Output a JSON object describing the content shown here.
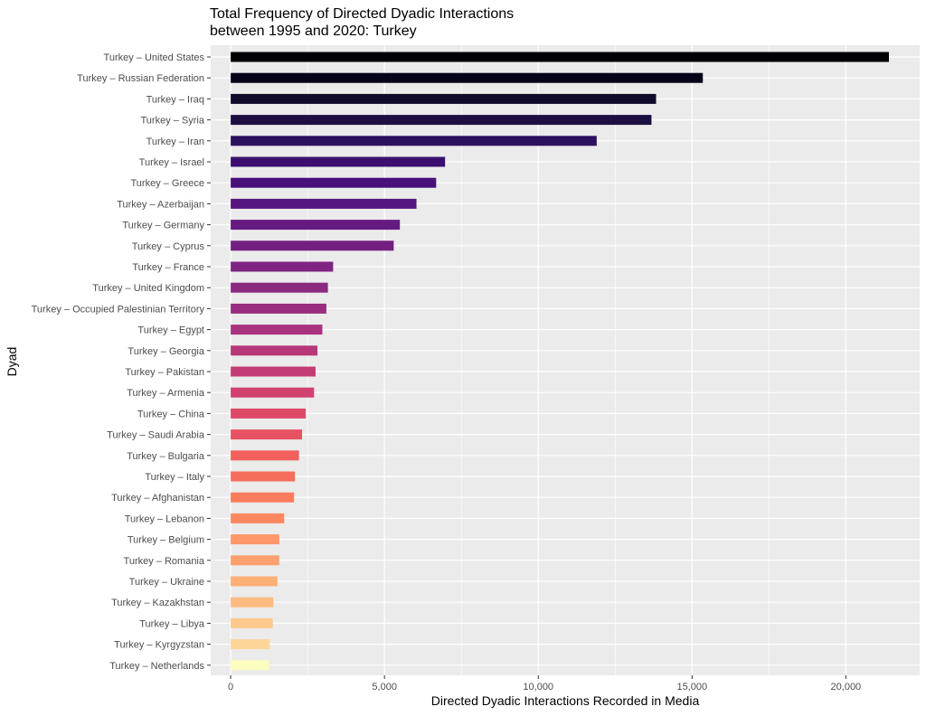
{
  "chart_data": {
    "type": "bar",
    "orientation": "horizontal",
    "title": "Total Frequency of Directed Dyadic Interactions",
    "subtitle": "between 1995 and 2020: Turkey",
    "xlabel": "Directed Dyadic Interactions Recorded in Media",
    "ylabel": "Dyad",
    "xlim": [
      -650,
      22400
    ],
    "x_ticks": [
      0,
      5000,
      10000,
      15000,
      20000
    ],
    "x_tick_labels": [
      "0",
      "5,000",
      "10,000",
      "15,000",
      "20,000"
    ],
    "grid": true,
    "legend": "none",
    "color_scale": "magma (dark for highest, light for lowest)",
    "categories": [
      "Turkey – United States",
      "Turkey – Russian Federation",
      "Turkey – Iraq",
      "Turkey – Syria",
      "Turkey – Iran",
      "Turkey – Israel",
      "Turkey – Greece",
      "Turkey – Azerbaijan",
      "Turkey – Germany",
      "Turkey – Cyprus",
      "Turkey – France",
      "Turkey – United Kingdom",
      "Turkey – Occupied Palestinian Territory",
      "Turkey – Egypt",
      "Turkey – Georgia",
      "Turkey – Pakistan",
      "Turkey – Armenia",
      "Turkey – China",
      "Turkey – Saudi Arabia",
      "Turkey – Bulgaria",
      "Turkey – Italy",
      "Turkey – Afghanistan",
      "Turkey – Lebanon",
      "Turkey – Belgium",
      "Turkey – Romania",
      "Turkey – Ukraine",
      "Turkey – Kazakhstan",
      "Turkey – Libya",
      "Turkey – Kyrgyzstan",
      "Turkey – Netherlands"
    ],
    "values": [
      21400,
      15350,
      13830,
      13680,
      11900,
      6970,
      6680,
      6040,
      5500,
      5300,
      3330,
      3160,
      3110,
      2980,
      2820,
      2760,
      2710,
      2440,
      2320,
      2220,
      2090,
      2060,
      1740,
      1580,
      1580,
      1520,
      1390,
      1370,
      1270,
      1250
    ],
    "colors": [
      "#000004",
      "#060418",
      "#110b2b",
      "#1e0f42",
      "#2c115f",
      "#3b0f70",
      "#4a1079",
      "#57157e",
      "#641a80",
      "#721f81",
      "#7f2482",
      "#8c2981",
      "#9a2d80",
      "#a8327d",
      "#b73779",
      "#c43c75",
      "#d1426f",
      "#de4968",
      "#e75263",
      "#f1605d",
      "#f56e5c",
      "#f97c5d",
      "#fb8861",
      "#fd9668",
      "#fea16e",
      "#feaf77",
      "#febb81",
      "#fec98d",
      "#fed599",
      "#fcfdbf"
    ]
  }
}
